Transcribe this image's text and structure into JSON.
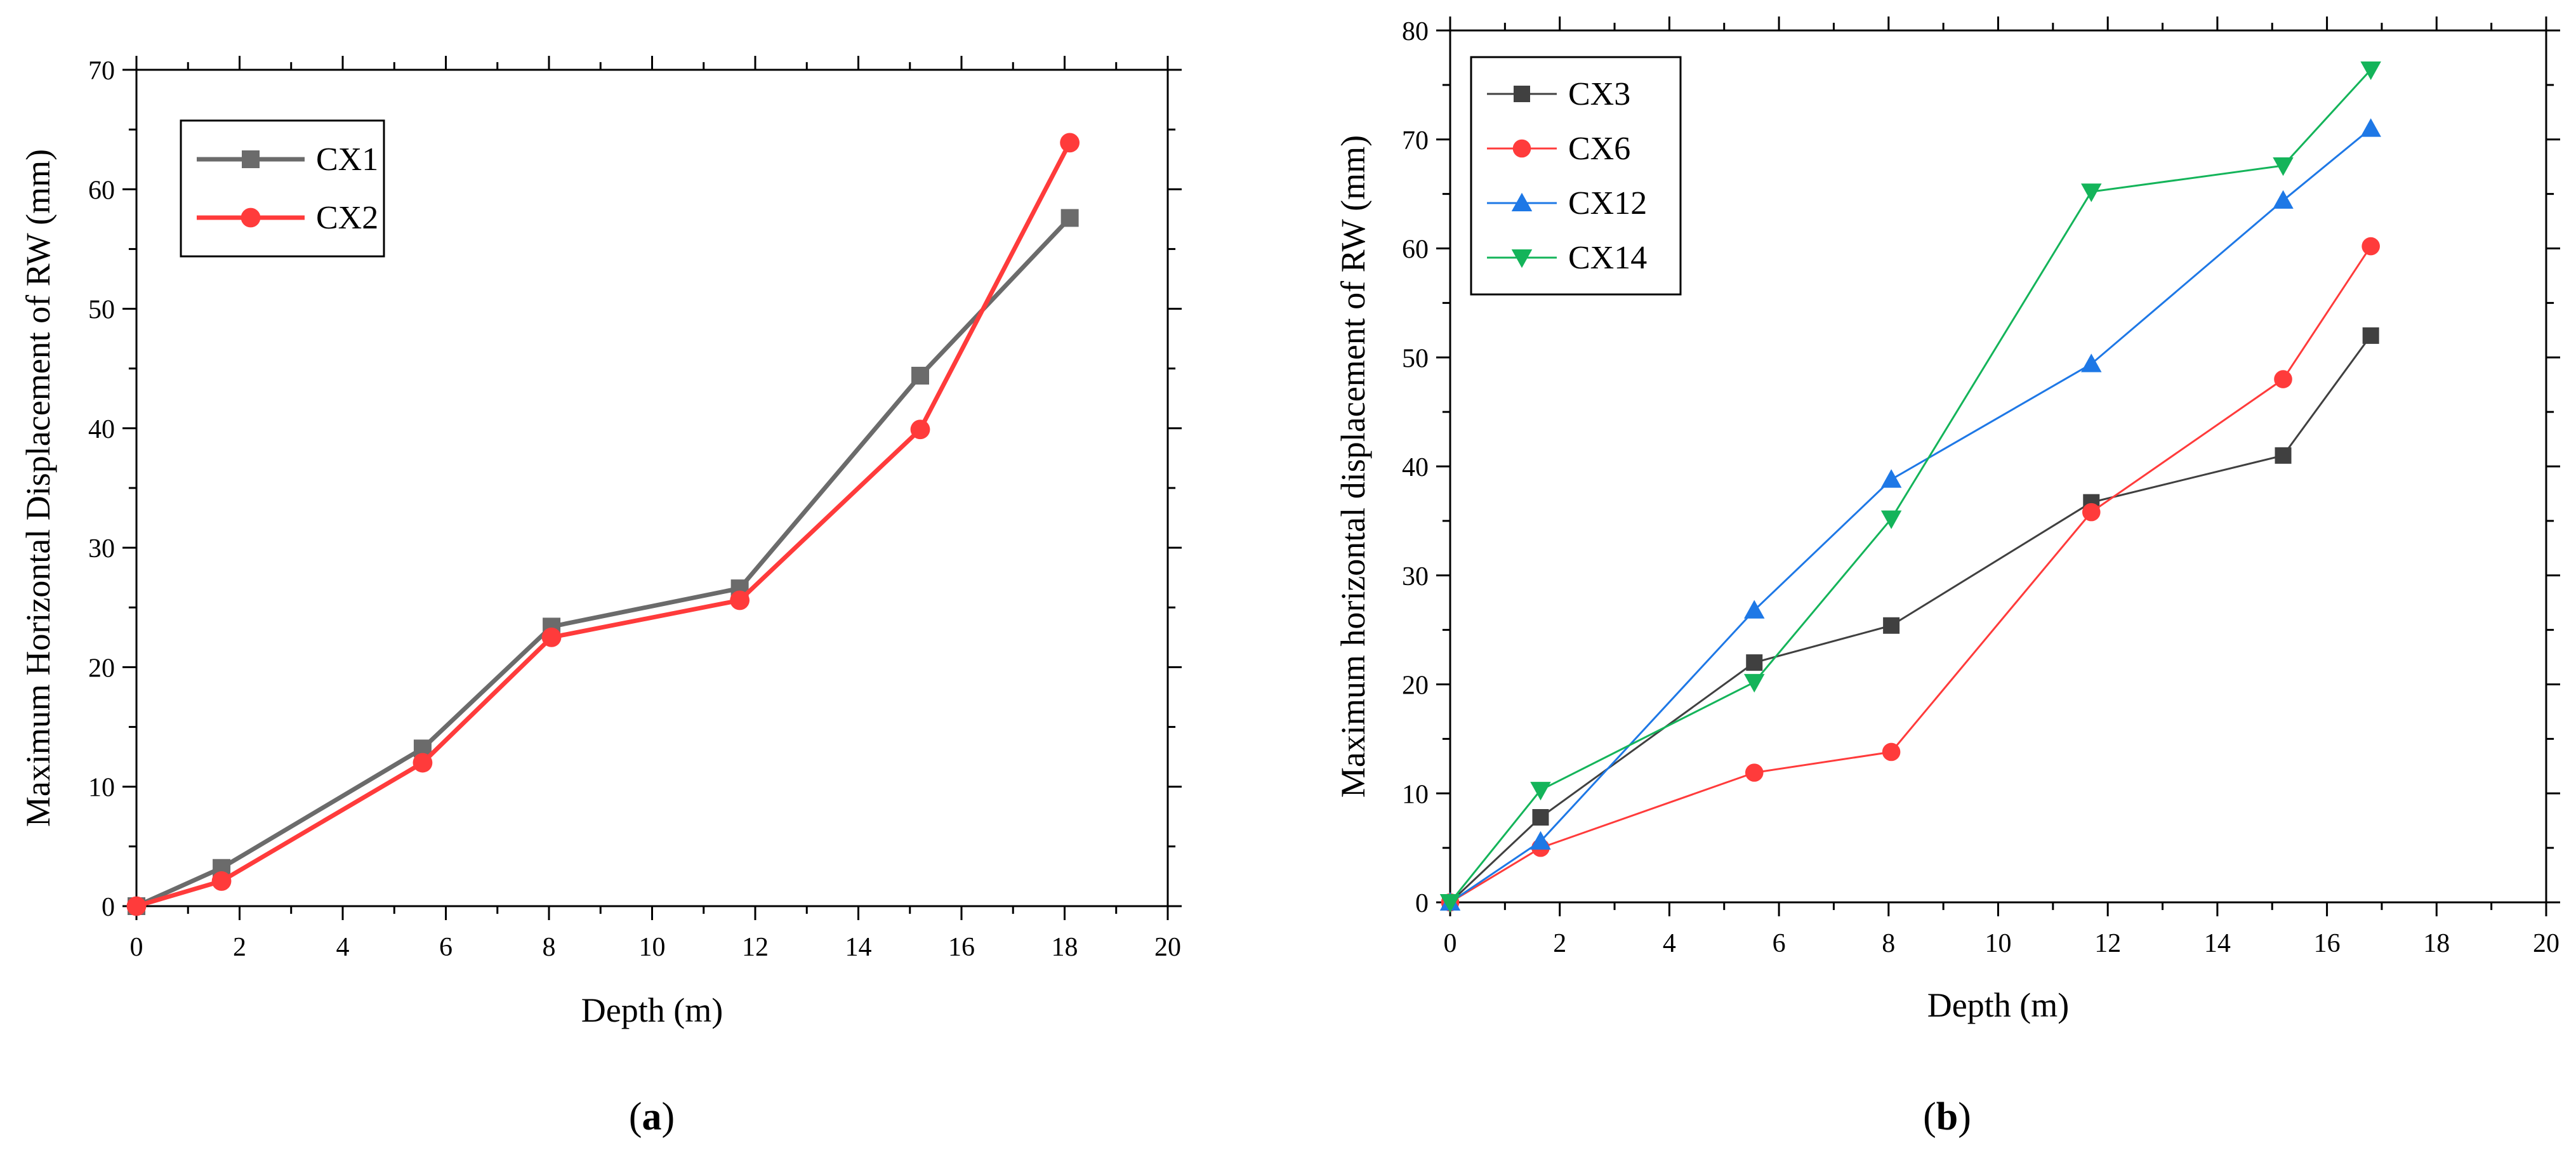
{
  "chart_data": [
    {
      "type": "line",
      "panel_label": "a",
      "xlabel": "Depth (m)",
      "ylabel": "Maximum Horizontal Displacement of RW (mm)",
      "xlim": [
        0,
        20
      ],
      "ylim": [
        0,
        70
      ],
      "xticks": [
        0,
        2,
        4,
        6,
        8,
        10,
        12,
        14,
        16,
        18,
        20
      ],
      "yticks": [
        0,
        10,
        20,
        30,
        40,
        50,
        60,
        70
      ],
      "legend_position": "top-left",
      "series": [
        {
          "name": "CX1",
          "color": "#6b6b6b",
          "marker": "square",
          "x": [
            0,
            1.65,
            5.55,
            8.05,
            11.7,
            15.2,
            18.1
          ],
          "y": [
            0,
            3.2,
            13.2,
            23.4,
            26.6,
            44.4,
            57.6
          ]
        },
        {
          "name": "CX2",
          "color": "#ff3b3b",
          "marker": "circle",
          "x": [
            0,
            1.65,
            5.55,
            8.05,
            11.7,
            15.2,
            18.1
          ],
          "y": [
            0,
            2.1,
            12.0,
            22.5,
            25.6,
            39.9,
            63.9
          ]
        }
      ]
    },
    {
      "type": "line",
      "panel_label": "b",
      "xlabel": "Depth (m)",
      "ylabel": "Maximum horizontal displacement of RW (mm)",
      "xlim": [
        0,
        20
      ],
      "ylim": [
        0,
        80
      ],
      "xticks": [
        0,
        2,
        4,
        6,
        8,
        10,
        12,
        14,
        16,
        18,
        20
      ],
      "yticks": [
        0,
        10,
        20,
        30,
        40,
        50,
        60,
        70,
        80
      ],
      "legend_position": "top-left",
      "series": [
        {
          "name": "CX3",
          "color": "#404040",
          "marker": "square",
          "x": [
            0,
            1.65,
            5.55,
            8.05,
            11.7,
            15.2,
            16.8
          ],
          "y": [
            0,
            7.8,
            22.0,
            25.4,
            36.7,
            41.0,
            52.0
          ]
        },
        {
          "name": "CX6",
          "color": "#ff3b3b",
          "marker": "circle",
          "x": [
            0,
            1.65,
            5.55,
            8.05,
            11.7,
            15.2,
            16.8
          ],
          "y": [
            0,
            5.0,
            11.9,
            13.8,
            35.8,
            48.0,
            60.2
          ]
        },
        {
          "name": "CX12",
          "color": "#1e78e6",
          "marker": "triangle-up",
          "x": [
            0,
            1.65,
            5.55,
            8.05,
            11.7,
            15.2,
            16.8
          ],
          "y": [
            0,
            5.6,
            26.8,
            38.8,
            49.4,
            64.4,
            71.0
          ]
        },
        {
          "name": "CX14",
          "color": "#14b45a",
          "marker": "triangle-down",
          "x": [
            0,
            1.65,
            5.55,
            8.05,
            11.7,
            15.2,
            16.8
          ],
          "y": [
            0,
            10.3,
            20.2,
            35.2,
            65.2,
            67.6,
            76.4
          ]
        }
      ]
    }
  ]
}
